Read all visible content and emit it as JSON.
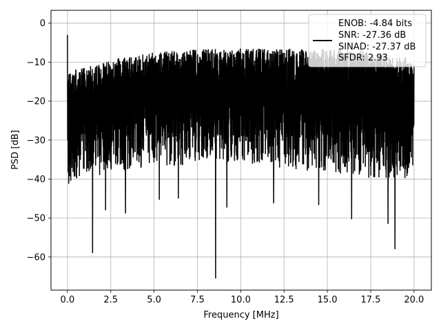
{
  "chart_data": {
    "type": "line",
    "title": "",
    "xlabel": "Frequency [MHz]",
    "ylabel": "PSD [dB]",
    "xlim": [
      -0.95,
      21.0
    ],
    "ylim": [
      -68.5,
      3.3
    ],
    "grid": true,
    "xticks": [
      0.0,
      2.5,
      5.0,
      7.5,
      10.0,
      12.5,
      15.0,
      17.5,
      20.0
    ],
    "xtick_labels": [
      "0.0",
      "2.5",
      "5.0",
      "7.5",
      "10.0",
      "12.5",
      "15.0",
      "17.5",
      "20.0"
    ],
    "yticks": [
      0,
      -10,
      -20,
      -30,
      -40,
      -50,
      -60
    ],
    "ytick_labels": [
      "0",
      "−10",
      "−20",
      "−30",
      "−40",
      "−50",
      "−60"
    ],
    "legend": {
      "placement": "top-right",
      "entries": [
        "ENOB: -4.84 bits",
        "SNR: -27.36 dB",
        "SINAD: -27.37 dB",
        "SFDR: 2.93"
      ]
    },
    "series": [
      {
        "color": "#000000",
        "noise_x_range": [
          0.0,
          20.0
        ],
        "peak_at_dc_db": -3,
        "envelope_top": {
          "x": [
            0,
            0.5,
            3,
            5,
            8,
            10,
            12,
            14,
            16,
            18,
            20
          ],
          "y": [
            -13,
            -12,
            -9,
            -7.5,
            -6.5,
            -6.5,
            -6.5,
            -6.5,
            -6.5,
            -7.5,
            -9
          ]
        },
        "envelope_bottom": {
          "x": [
            0,
            1,
            3,
            5,
            8,
            10,
            12,
            14,
            16,
            18,
            20
          ],
          "y": [
            -42,
            -40,
            -38,
            -37,
            -36,
            -36,
            -37,
            -38,
            -39,
            -40,
            -40
          ]
        },
        "deep_nulls": [
          {
            "x": 1.45,
            "y": -59
          },
          {
            "x": 8.55,
            "y": -65.5
          },
          {
            "x": 18.9,
            "y": -58
          },
          {
            "x": 3.35,
            "y": -48.8
          },
          {
            "x": 2.2,
            "y": -48
          },
          {
            "x": 9.2,
            "y": -47.3
          },
          {
            "x": 16.4,
            "y": -50.3
          },
          {
            "x": 18.5,
            "y": -51.5
          },
          {
            "x": 14.5,
            "y": -46.7
          },
          {
            "x": 5.3,
            "y": -45.3
          },
          {
            "x": 6.4,
            "y": -45.0
          },
          {
            "x": 11.9,
            "y": -46.2
          }
        ]
      }
    ]
  }
}
